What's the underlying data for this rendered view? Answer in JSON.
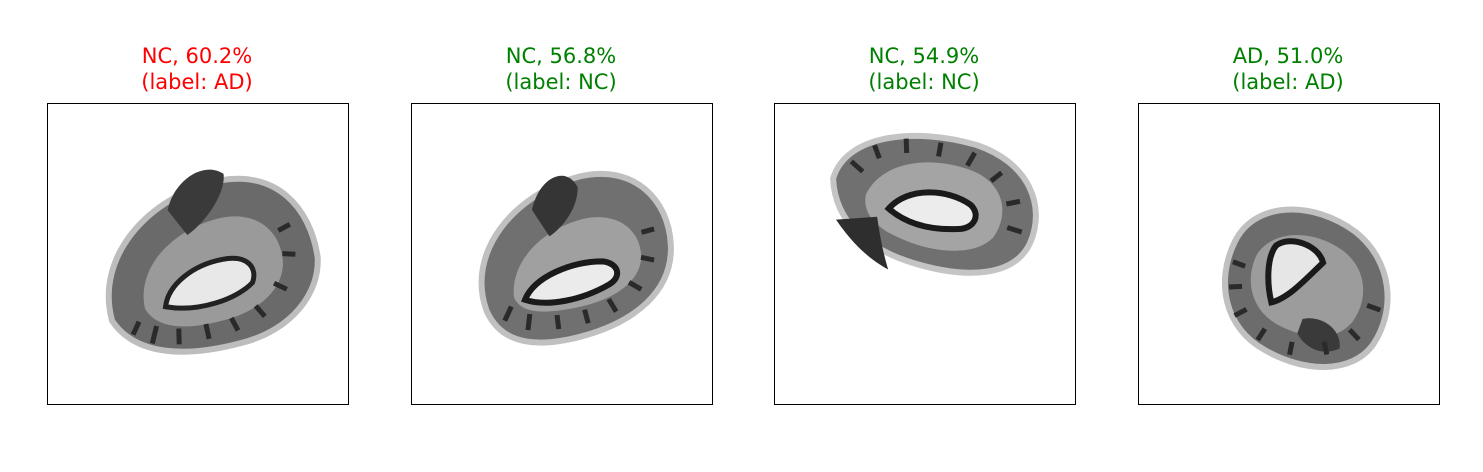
{
  "panels": [
    {
      "prediction": "NC, 60.2%",
      "label": "(label: AD)",
      "color": "#ff0000",
      "image": "brain-slice"
    },
    {
      "prediction": "NC, 56.8%",
      "label": "(label: NC)",
      "color": "#008000",
      "image": "brain-slice"
    },
    {
      "prediction": "NC, 54.9%",
      "label": "(label: NC)",
      "color": "#008000",
      "image": "brain-slice"
    },
    {
      "prediction": "AD, 51.0%",
      "label": "(label: AD)",
      "color": "#008000",
      "image": "brain-slice"
    }
  ]
}
